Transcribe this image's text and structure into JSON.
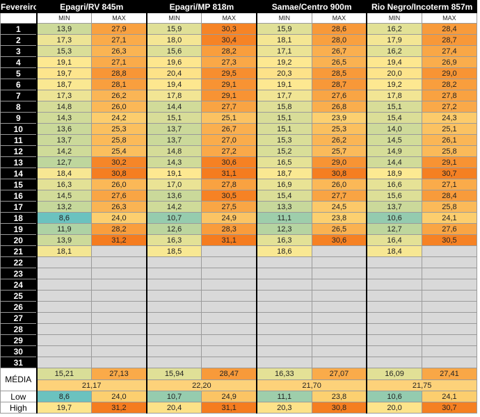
{
  "header": {
    "month": "Fevereiro",
    "stations": [
      "Epagri/RV 845m",
      "Epagri/MP 818m",
      "Samae/Centro 900m",
      "Rio Negro/Incoterm 857m"
    ],
    "subheaders": [
      "MIN",
      "MAX",
      "MIN",
      "MAX",
      "MIN",
      "MAX",
      "MIN",
      "MAX"
    ]
  },
  "rows": [
    {
      "day": 1,
      "values": [
        "13,9",
        "27,9",
        "15,9",
        "30,3",
        "15,9",
        "28,6",
        "16,2",
        "28,4"
      ]
    },
    {
      "day": 2,
      "values": [
        "17,3",
        "27,1",
        "18,0",
        "30,4",
        "18,1",
        "28,0",
        "17,9",
        "28,7"
      ]
    },
    {
      "day": 3,
      "values": [
        "15,3",
        "26,3",
        "15,6",
        "28,2",
        "17,1",
        "26,7",
        "16,2",
        "27,4"
      ]
    },
    {
      "day": 4,
      "values": [
        "19,1",
        "27,1",
        "19,6",
        "27,3",
        "19,2",
        "26,5",
        "19,4",
        "26,9"
      ]
    },
    {
      "day": 5,
      "values": [
        "19,7",
        "28,8",
        "20,4",
        "29,5",
        "20,3",
        "28,5",
        "20,0",
        "29,0"
      ]
    },
    {
      "day": 6,
      "values": [
        "18,7",
        "28,1",
        "19,4",
        "29,1",
        "19,1",
        "28,7",
        "19,2",
        "28,2"
      ]
    },
    {
      "day": 7,
      "values": [
        "17,3",
        "26,2",
        "17,8",
        "29,1",
        "17,7",
        "27,6",
        "17,8",
        "27,8"
      ]
    },
    {
      "day": 8,
      "values": [
        "14,8",
        "26,0",
        "14,4",
        "27,7",
        "15,8",
        "26,8",
        "15,1",
        "27,2"
      ]
    },
    {
      "day": 9,
      "values": [
        "14,3",
        "24,2",
        "15,1",
        "25,1",
        "15,1",
        "23,9",
        "15,4",
        "24,3"
      ]
    },
    {
      "day": 10,
      "values": [
        "13,6",
        "25,3",
        "13,7",
        "26,7",
        "15,1",
        "25,3",
        "14,0",
        "25,1"
      ]
    },
    {
      "day": 11,
      "values": [
        "13,7",
        "25,8",
        "13,7",
        "27,0",
        "15,3",
        "26,2",
        "14,5",
        "26,1"
      ]
    },
    {
      "day": 12,
      "values": [
        "14,2",
        "25,4",
        "14,8",
        "27,2",
        "15,2",
        "25,7",
        "14,9",
        "25,8"
      ]
    },
    {
      "day": 13,
      "values": [
        "12,7",
        "30,2",
        "14,3",
        "30,6",
        "16,5",
        "29,0",
        "14,4",
        "29,1"
      ]
    },
    {
      "day": 14,
      "values": [
        "18,4",
        "30,8",
        "19,1",
        "31,1",
        "18,7",
        "30,8",
        "18,9",
        "30,7"
      ]
    },
    {
      "day": 15,
      "values": [
        "16,3",
        "26,0",
        "17,0",
        "27,8",
        "16,9",
        "26,0",
        "16,6",
        "27,1"
      ]
    },
    {
      "day": 16,
      "values": [
        "14,5",
        "27,6",
        "13,6",
        "30,5",
        "15,4",
        "27,7",
        "15,6",
        "28,4"
      ]
    },
    {
      "day": 17,
      "values": [
        "13,2",
        "26,3",
        "14,2",
        "27,5",
        "13,3",
        "24,5",
        "13,7",
        "25,8"
      ]
    },
    {
      "day": 18,
      "values": [
        "8,6",
        "24,0",
        "10,7",
        "24,9",
        "11,1",
        "23,8",
        "10,6",
        "24,1"
      ]
    },
    {
      "day": 19,
      "values": [
        "11,9",
        "28,2",
        "12,6",
        "28,3",
        "12,3",
        "26,5",
        "12,7",
        "27,6"
      ]
    },
    {
      "day": 20,
      "values": [
        "13,9",
        "31,2",
        "16,3",
        "31,1",
        "16,3",
        "30,6",
        "16,4",
        "30,5"
      ]
    },
    {
      "day": 21,
      "values": [
        "18,1",
        null,
        "18,5",
        null,
        "18,6",
        null,
        "18,4",
        null
      ]
    },
    {
      "day": 22,
      "values": [
        null,
        null,
        null,
        null,
        null,
        null,
        null,
        null
      ]
    },
    {
      "day": 23,
      "values": [
        null,
        null,
        null,
        null,
        null,
        null,
        null,
        null
      ]
    },
    {
      "day": 24,
      "values": [
        null,
        null,
        null,
        null,
        null,
        null,
        null,
        null
      ]
    },
    {
      "day": 25,
      "values": [
        null,
        null,
        null,
        null,
        null,
        null,
        null,
        null
      ]
    },
    {
      "day": 26,
      "values": [
        null,
        null,
        null,
        null,
        null,
        null,
        null,
        null
      ]
    },
    {
      "day": 27,
      "values": [
        null,
        null,
        null,
        null,
        null,
        null,
        null,
        null
      ]
    },
    {
      "day": 28,
      "values": [
        null,
        null,
        null,
        null,
        null,
        null,
        null,
        null
      ]
    },
    {
      "day": 29,
      "values": [
        null,
        null,
        null,
        null,
        null,
        null,
        null,
        null
      ]
    },
    {
      "day": 30,
      "values": [
        null,
        null,
        null,
        null,
        null,
        null,
        null,
        null
      ]
    },
    {
      "day": 31,
      "values": [
        null,
        null,
        null,
        null,
        null,
        null,
        null,
        null
      ]
    }
  ],
  "summary": {
    "mean": {
      "label": "MÉDIA",
      "values": [
        "15,21",
        "27,13",
        "15,94",
        "28,47",
        "16,33",
        "27,07",
        "16,09",
        "27,41"
      ],
      "averages": [
        "21,17",
        "22,20",
        "21,70",
        "21,75"
      ]
    },
    "low": {
      "label": "Low",
      "values": [
        "8,6",
        "24,0",
        "10,7",
        "24,9",
        "11,1",
        "23,8",
        "10,6",
        "24,1"
      ]
    },
    "high": {
      "label": "High",
      "values": [
        "19,7",
        "31,2",
        "20,4",
        "31,1",
        "20,3",
        "30,8",
        "20,0",
        "30,7"
      ]
    }
  }
}
